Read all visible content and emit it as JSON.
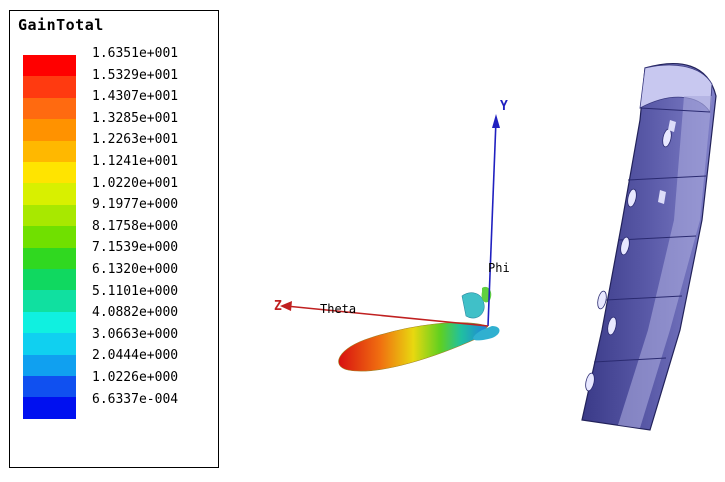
{
  "legend": {
    "title": "GainTotal",
    "ticks": [
      "1.6351e+001",
      "1.5329e+001",
      "1.4307e+001",
      "1.3285e+001",
      "1.2263e+001",
      "1.1241e+001",
      "1.0220e+001",
      "9.1977e+000",
      "8.1758e+000",
      "7.1539e+000",
      "6.1320e+000",
      "5.1101e+000",
      "4.0882e+000",
      "3.0663e+000",
      "2.0444e+000",
      "1.0226e+000",
      "6.6337e-004"
    ],
    "colors": [
      "#ff0000",
      "#ff3a10",
      "#ff6a10",
      "#ff9200",
      "#ffb800",
      "#ffe400",
      "#d8f000",
      "#a8e800",
      "#70e000",
      "#30d820",
      "#10d860",
      "#10e0a0",
      "#10f0e0",
      "#10d0f0",
      "#10a0f0",
      "#1050f0",
      "#0010f0"
    ]
  },
  "axes": {
    "y_label": "Y",
    "z_label": "Z",
    "theta_label": "Theta",
    "phi_label": "Phi",
    "y_color": "#2020c0",
    "z_color": "#c02020"
  }
}
